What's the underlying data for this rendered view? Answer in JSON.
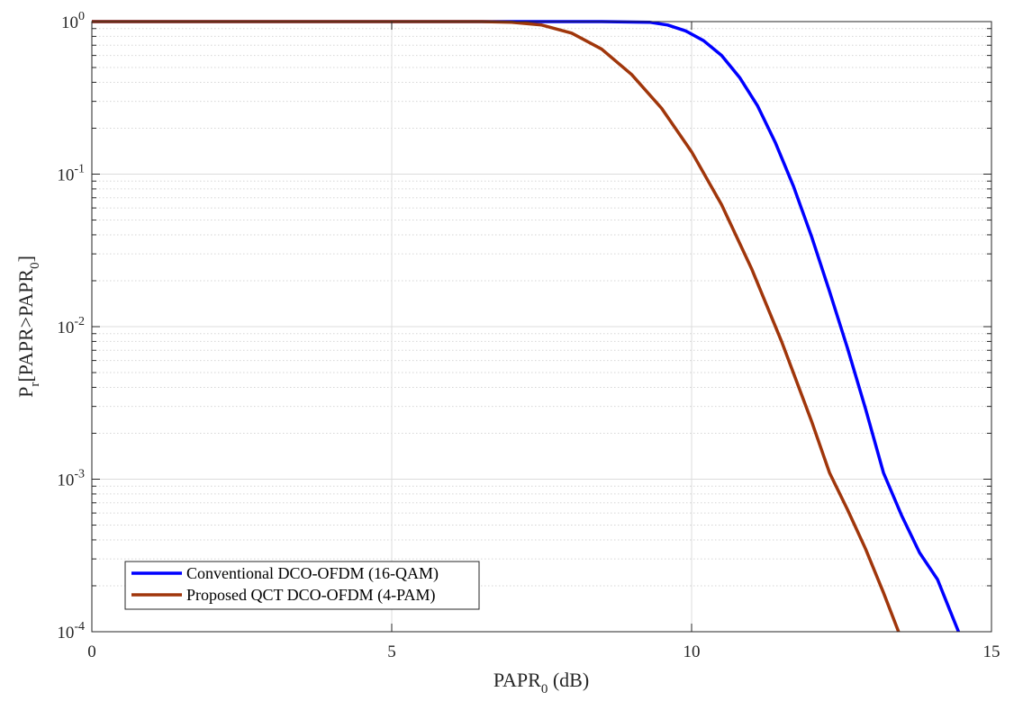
{
  "chart_data": {
    "type": "line",
    "xlabel": {
      "main": "PAPR",
      "sub": "0",
      "rest": " (dB)"
    },
    "ylabel": {
      "p": "P",
      "p_sub": "r",
      "mid": "[PAPR>PAPR",
      "sub": "0",
      "end": "]"
    },
    "xlim": [
      0,
      15
    ],
    "ylim": [
      0.0001,
      1
    ],
    "yscale": "log",
    "grid": true,
    "minor_grid": true,
    "legend_position": "bottom-left",
    "x_ticks": [
      "0",
      "5",
      "10",
      "15"
    ],
    "y_ticks": [
      {
        "base": "10",
        "exp": "0"
      },
      {
        "base": "10",
        "exp": "-1"
      },
      {
        "base": "10",
        "exp": "-2"
      },
      {
        "base": "10",
        "exp": "-3"
      },
      {
        "base": "10",
        "exp": "-4"
      }
    ],
    "series": [
      {
        "name": "Conventional DCO-OFDM (16-QAM)",
        "color": "#0000ff",
        "x": [
          0,
          8.5,
          9.3,
          9.6,
          9.9,
          10.2,
          10.5,
          10.8,
          11.1,
          11.4,
          11.7,
          12.0,
          12.3,
          12.6,
          12.9,
          13.2,
          13.5,
          13.8,
          14.1,
          14.3,
          14.45
        ],
        "y": [
          1,
          1,
          0.99,
          0.95,
          0.87,
          0.75,
          0.6,
          0.43,
          0.28,
          0.16,
          0.083,
          0.039,
          0.017,
          0.0072,
          0.0029,
          0.0011,
          0.00058,
          0.00033,
          0.00022,
          0.00014,
          0.0001
        ]
      },
      {
        "name": "Proposed QCT DCO-OFDM (4-PAM)",
        "color": "#a0360b",
        "x": [
          0,
          6.5,
          7.0,
          7.5,
          8.0,
          8.5,
          9.0,
          9.5,
          10.0,
          10.5,
          11.0,
          11.5,
          12.0,
          12.3,
          12.6,
          12.9,
          13.2,
          13.45
        ],
        "y": [
          1,
          1,
          0.99,
          0.95,
          0.84,
          0.66,
          0.45,
          0.27,
          0.14,
          0.063,
          0.024,
          0.008,
          0.0024,
          0.0011,
          0.00063,
          0.00035,
          0.00018,
          0.0001
        ]
      }
    ]
  }
}
